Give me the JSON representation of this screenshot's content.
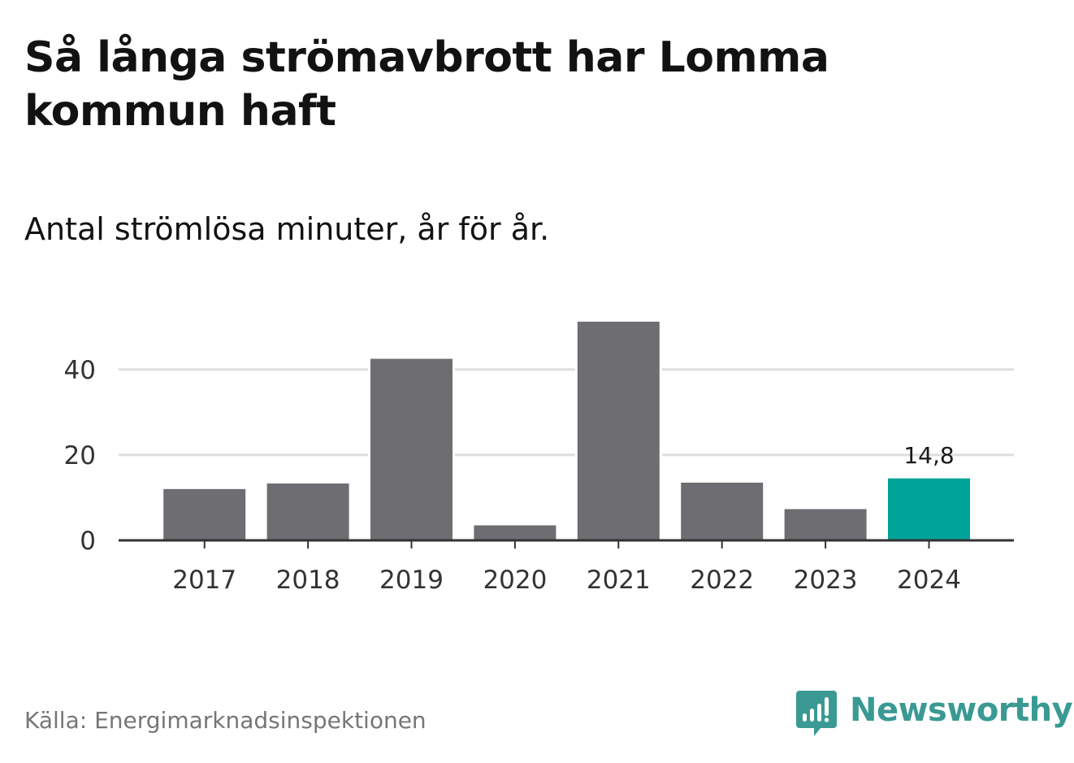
{
  "title": "Så långa strömavbrott har Lomma kommun haft",
  "subtitle": "Antal strömlösa minuter, år för år.",
  "source": "Källa: Energimarknadsinspektionen",
  "brand": {
    "name": "Newsworthy",
    "logo_icon": "newsworthy-bar-chart-icon",
    "color": "#3a9a93"
  },
  "colors": {
    "bar_default": "#6e6d72",
    "bar_highlight": "#00a398",
    "grid": "#dedede",
    "axis": "#333333"
  },
  "chart_data": {
    "type": "bar",
    "title": "Så långa strömavbrott har Lomma kommun haft",
    "subtitle": "Antal strömlösa minuter, år för år.",
    "xlabel": "",
    "ylabel": "",
    "ylim": [
      0,
      52
    ],
    "yticks": [
      0,
      20,
      40
    ],
    "ytick_labels": [
      "0",
      "20",
      "40"
    ],
    "categories": [
      "2017",
      "2018",
      "2019",
      "2020",
      "2021",
      "2022",
      "2023",
      "2024"
    ],
    "values": [
      12.3,
      13.6,
      42.8,
      3.8,
      51.5,
      13.8,
      7.6,
      14.8
    ],
    "highlight_index": 7,
    "data_labels": [
      {
        "index": 7,
        "text": "14,8"
      }
    ],
    "grid": true
  }
}
